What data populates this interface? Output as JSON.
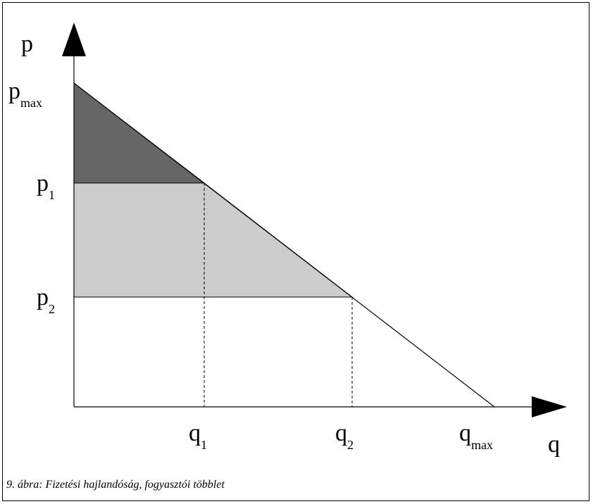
{
  "labels": {
    "y_axis": "p",
    "x_axis": "q",
    "p_max": {
      "main": "p",
      "sub": "max"
    },
    "p_1": {
      "main": "p",
      "sub": "1"
    },
    "p_2": {
      "main": "p",
      "sub": "2"
    },
    "q_1": {
      "main": "q",
      "sub": "1"
    },
    "q_2": {
      "main": "q",
      "sub": "2"
    },
    "q_max": {
      "main": "q",
      "sub": "max"
    }
  },
  "colors": {
    "dark_region": "#666666",
    "light_region": "#cccccc",
    "line": "#000000"
  },
  "caption": "9. ábra: Fizetési hajlandóság, fogyasztói többlet"
}
